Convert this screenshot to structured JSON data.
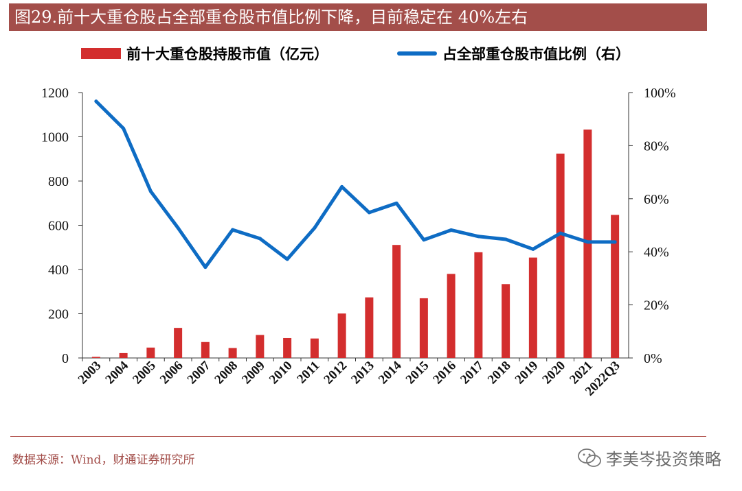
{
  "title": "图29.前十大重仓股占全部重仓股市值比例下降，目前稳定在 40%左右",
  "legend": {
    "bar_label": "前十大重仓股持股市值（亿元）",
    "line_label": "占全部重仓股市值比例（右）"
  },
  "chart_data": {
    "type": "bar+line",
    "categories": [
      "2003",
      "2004",
      "2005",
      "2006",
      "2007",
      "2008",
      "2009",
      "2010",
      "2011",
      "2012",
      "2013",
      "2014",
      "2015",
      "2016",
      "2017",
      "2018",
      "2019",
      "2020",
      "2021",
      "2022Q3"
    ],
    "series": [
      {
        "name": "前十大重仓股持股市值（亿元）",
        "type": "bar",
        "axis": "left",
        "color": "#d32e2e",
        "values": [
          5,
          22,
          47,
          136,
          72,
          45,
          104,
          90,
          88,
          201,
          274,
          511,
          270,
          380,
          478,
          334,
          454,
          924,
          1033,
          647
        ]
      },
      {
        "name": "占全部重仓股市值比例（右）",
        "type": "line",
        "axis": "right",
        "color": "#0e6cc4",
        "values": [
          0.967,
          0.865,
          0.628,
          0.49,
          0.342,
          0.483,
          0.45,
          0.372,
          0.49,
          0.645,
          0.548,
          0.583,
          0.445,
          0.482,
          0.458,
          0.447,
          0.41,
          0.47,
          0.437,
          0.437
        ]
      }
    ],
    "left_axis": {
      "ylim": [
        0,
        1200
      ],
      "ticks": [
        0,
        200,
        400,
        600,
        800,
        1000,
        1200
      ]
    },
    "right_axis": {
      "ylim": [
        0,
        1.0
      ],
      "ticks": [
        "0%",
        "20%",
        "40%",
        "60%",
        "80%",
        "100%"
      ]
    },
    "legend_position": "top"
  },
  "source": "数据来源：Wind，财通证券研究所",
  "watermark": "李美岑投资策略"
}
